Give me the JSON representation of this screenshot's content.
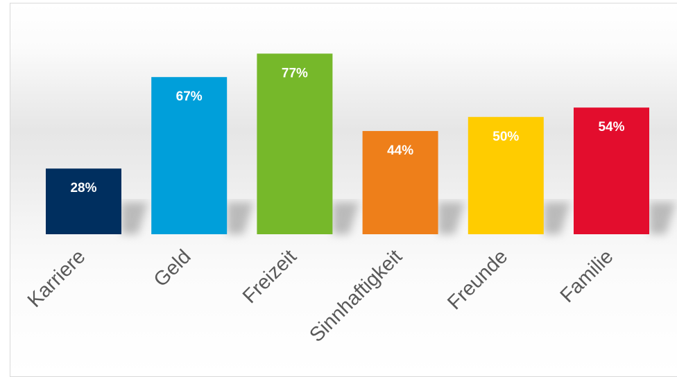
{
  "chart_data": {
    "type": "bar",
    "categories": [
      "Karriere",
      "Geld",
      "Freizeit",
      "Sinnhaftigkeit",
      "Freunde",
      "Familie"
    ],
    "values": [
      28,
      67,
      77,
      44,
      50,
      54
    ],
    "value_labels": [
      "28%",
      "67%",
      "77%",
      "44%",
      "50%",
      "54%"
    ],
    "colors": [
      "#002f5f",
      "#009fda",
      "#76b82a",
      "#ee7f1a",
      "#ffcc00",
      "#e30d2d"
    ],
    "unit": "%",
    "title": "",
    "xlabel": "",
    "ylabel": "",
    "ylim": [
      0,
      100
    ],
    "grid": false,
    "legend": "none"
  }
}
